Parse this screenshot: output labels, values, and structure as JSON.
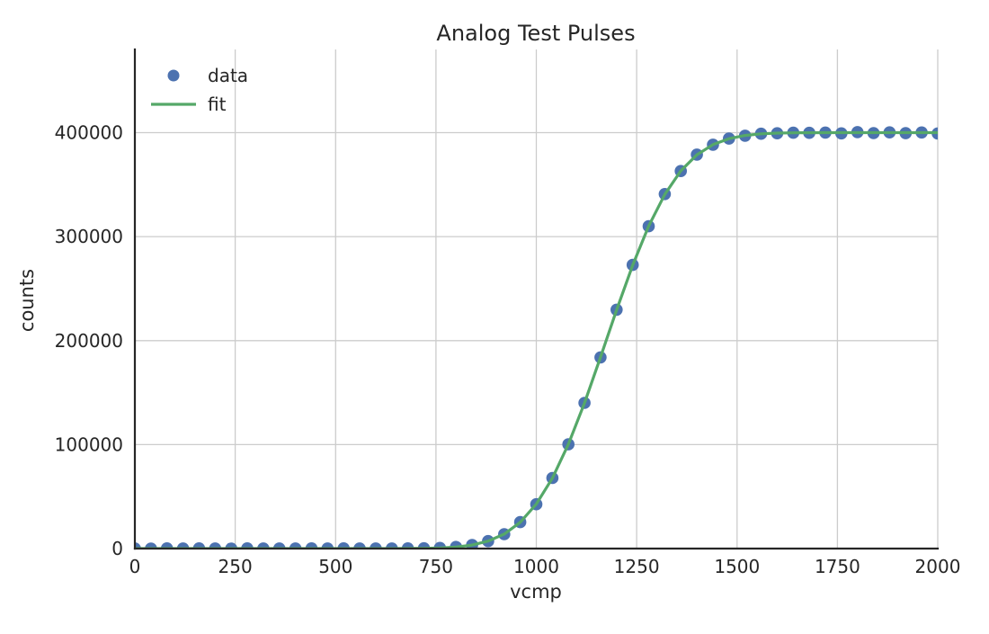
{
  "figure": {
    "background": "#ffffff"
  },
  "chart_data": {
    "type": "scatter",
    "title": "Analog Test Pulses",
    "xlabel": "vcmp",
    "ylabel": "counts",
    "xlim": [
      0,
      2000
    ],
    "ylim": [
      0,
      480000
    ],
    "xticks": [
      0,
      250,
      500,
      750,
      1000,
      1250,
      1500,
      1750,
      2000
    ],
    "xtick_labels": [
      "0",
      "250",
      "500",
      "750",
      "1000",
      "1250",
      "1500",
      "1750",
      "2000"
    ],
    "yticks": [
      0,
      100000,
      200000,
      300000,
      400000
    ],
    "ytick_labels": [
      "0",
      "100000",
      "200000",
      "300000",
      "400000"
    ],
    "grid": true,
    "grid_color": "#cccccc",
    "axis_color": "#262626",
    "legend": {
      "position": "upper-left",
      "frame": false,
      "entries": [
        {
          "label": "data",
          "marker": "circle",
          "color": "#4c72b0"
        },
        {
          "label": "fit",
          "marker": "line",
          "color": "#55a868"
        }
      ]
    },
    "fit_model": {
      "form": "A * normal_cdf((x - mu) / sigma)",
      "A": 400000,
      "mu": 1174,
      "sigma": 140
    },
    "series": [
      {
        "name": "data",
        "type": "scatter",
        "color": "#4c72b0",
        "marker_size": 6.8,
        "x": [
          0,
          40,
          80,
          120,
          160,
          200,
          240,
          280,
          320,
          360,
          400,
          440,
          480,
          520,
          560,
          600,
          640,
          680,
          720,
          760,
          800,
          840,
          880,
          920,
          960,
          1000,
          1040,
          1080,
          1120,
          1160,
          1200,
          1240,
          1280,
          1320,
          1360,
          1400,
          1440,
          1480,
          1520,
          1560,
          1600,
          1640,
          1680,
          1720,
          1760,
          1800,
          1840,
          1880,
          1920,
          1960,
          2000
        ],
        "y": [
          100,
          30,
          160,
          60,
          210,
          90,
          40,
          150,
          80,
          120,
          50,
          170,
          90,
          140,
          60,
          110,
          80,
          150,
          260,
          640,
          1540,
          3380,
          7190,
          13860,
          25400,
          42600,
          67900,
          100200,
          140100,
          183900,
          229700,
          272800,
          310000,
          340900,
          363100,
          378900,
          388400,
          394300,
          397100,
          399000,
          399400,
          399900,
          399800,
          400100,
          399300,
          400500,
          399600,
          400300,
          399500,
          400200,
          399200
        ]
      },
      {
        "name": "fit",
        "type": "line",
        "color": "#55a868",
        "line_width": 3.2,
        "x": [
          0,
          40,
          80,
          120,
          160,
          200,
          240,
          280,
          320,
          360,
          400,
          440,
          480,
          520,
          560,
          600,
          640,
          680,
          720,
          760,
          800,
          840,
          880,
          920,
          960,
          1000,
          1040,
          1080,
          1120,
          1160,
          1200,
          1240,
          1280,
          1320,
          1360,
          1400,
          1440,
          1480,
          1520,
          1560,
          1600,
          1640,
          1680,
          1720,
          1760,
          1800,
          1840,
          1880,
          1920,
          1960,
          2000
        ],
        "y": [
          0,
          0,
          0,
          0,
          0,
          0,
          0,
          0,
          0,
          0,
          0,
          0,
          0,
          1,
          2,
          8,
          28,
          83,
          236,
          620,
          1513,
          3409,
          7144,
          13932,
          25265,
          42785,
          67712,
          100415,
          139930,
          184068,
          229470,
          272503,
          310190,
          340583,
          363224,
          378717,
          388512,
          394234,
          397306,
          398835,
          399531,
          399825,
          399940,
          399981,
          399994,
          399998,
          399999,
          400000,
          400000,
          400000,
          400000
        ]
      }
    ]
  }
}
